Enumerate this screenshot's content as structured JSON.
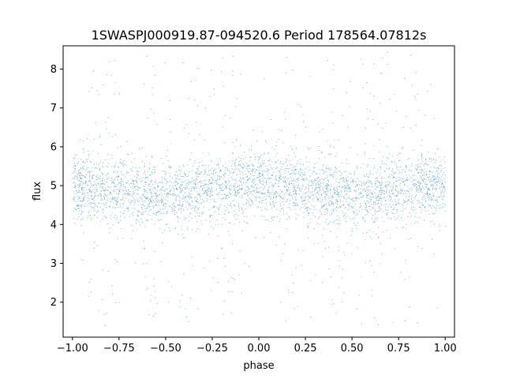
{
  "chart_data": {
    "type": "scatter",
    "title": "1SWASPJ000919.87-094520.6 Period 178564.07812s",
    "xlabel": "phase",
    "ylabel": "flux",
    "xlim": [
      -1.05,
      1.05
    ],
    "ylim": [
      1.1,
      8.6
    ],
    "x_ticks": [
      -1.0,
      -0.75,
      -0.5,
      -0.25,
      0.0,
      0.25,
      0.5,
      0.75,
      1.0
    ],
    "x_tick_labels": [
      "−1.00",
      "−0.75",
      "−0.50",
      "−0.25",
      "0.00",
      "0.25",
      "0.50",
      "0.75",
      "1.00"
    ],
    "y_ticks": [
      2,
      3,
      4,
      5,
      6,
      7,
      8
    ],
    "y_tick_labels": [
      "2",
      "3",
      "4",
      "5",
      "6",
      "7",
      "8"
    ],
    "grid": false,
    "legend": "none",
    "series": [
      {
        "color": "#1f77b4",
        "marker": "point",
        "phase_range": [
          -1.0,
          1.0
        ],
        "y_range": [
          1.4,
          8.45
        ],
        "median_flux_profile": {
          "phase": [
            -1.0,
            -0.75,
            -0.5,
            -0.25,
            0.0,
            0.1,
            0.25,
            0.5,
            0.6,
            0.75,
            1.0
          ],
          "flux": [
            5.0,
            4.9,
            4.75,
            4.95,
            5.05,
            5.0,
            4.95,
            4.75,
            4.75,
            4.95,
            5.05
          ]
        },
        "outlier_phases": [
          -0.82,
          -0.57,
          -0.38,
          -0.18,
          0.18,
          0.43,
          0.62,
          0.82
        ]
      }
    ]
  }
}
